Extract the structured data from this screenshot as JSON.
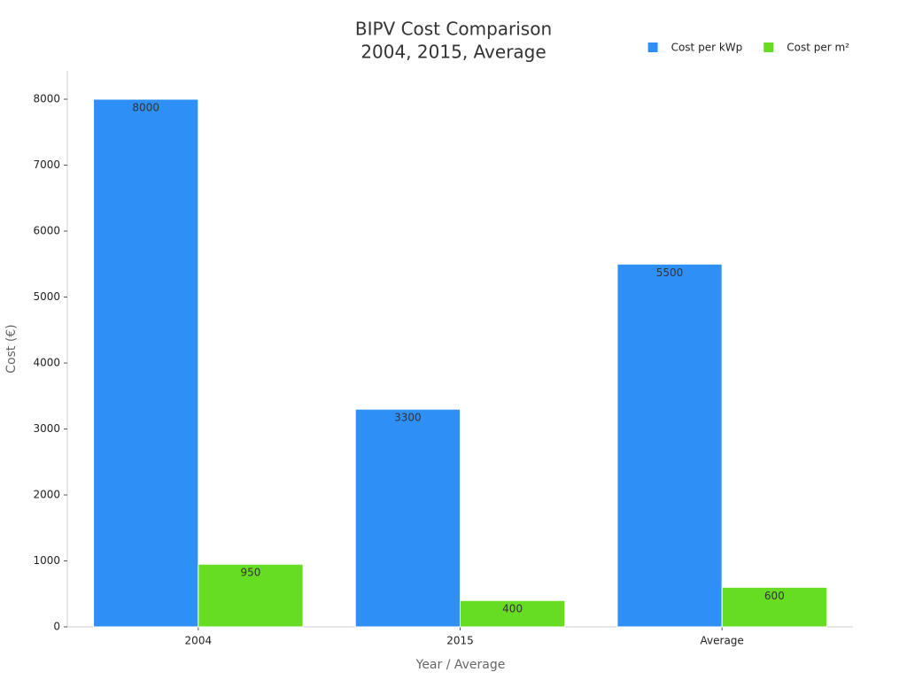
{
  "chart_data": {
    "type": "bar",
    "title": "BIPV Cost Comparison",
    "subtitle": "2004, 2015, Average",
    "x_label": "Year / Average",
    "y_label": "Cost (€)",
    "categories": [
      "2004",
      "2015",
      "Average"
    ],
    "series": [
      {
        "name": "Cost per kWp",
        "color": "#2e8ff7",
        "values": [
          8000,
          3300,
          5500
        ]
      },
      {
        "name": "Cost per m²",
        "color": "#66dd22",
        "values": [
          950,
          400,
          600
        ]
      }
    ],
    "ylim": [
      0,
      8430
    ],
    "yticks": [
      0,
      1000,
      2000,
      3000,
      4000,
      5000,
      6000,
      7000,
      8000
    ],
    "grid": false,
    "legend": "top-right"
  }
}
